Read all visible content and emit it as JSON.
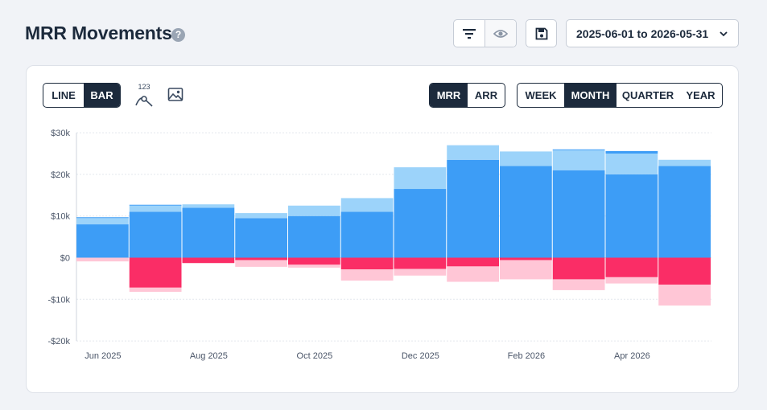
{
  "header": {
    "title": "MRR Movements",
    "help_icon": "question-circle-icon",
    "filter_icon": "filter-lines-icon",
    "eye_icon": "eye-icon",
    "save_icon": "floppy-disk-icon",
    "date_range": "2025-06-01 to 2026-05-31"
  },
  "toolbar": {
    "chart_modes": [
      "LINE",
      "BAR"
    ],
    "active_chart_mode": "BAR",
    "number_toggle_label": "123",
    "image_icon": "image-icon",
    "metrics": [
      "MRR",
      "ARR"
    ],
    "active_metric": "MRR",
    "periods": [
      "WEEK",
      "MONTH",
      "QUARTER",
      "YEAR"
    ],
    "active_period": "MONTH"
  },
  "colors": {
    "new_dark": "#3d9df6",
    "expansion_light": "#9cd3fa",
    "churn_red": "#fa2d66",
    "contraction_pink": "#ffc6d6",
    "grid": "#e3e7ed",
    "axis_text": "#4a5568"
  },
  "chart_data": {
    "type": "bar",
    "stacked": true,
    "categories": [
      "Jun 2025",
      "Jul 2025",
      "Aug 2025",
      "Sep 2025",
      "Oct 2025",
      "Nov 2025",
      "Dec 2025",
      "Jan 2026",
      "Feb 2026",
      "Mar 2026",
      "Apr 2026",
      "May 2026"
    ],
    "x_tick_labels": [
      "Jun 2025",
      "Aug 2025",
      "Oct 2025",
      "Dec 2025",
      "Feb 2026",
      "Apr 2026"
    ],
    "ylim": [
      -20000,
      30000
    ],
    "y_ticks": [
      30000,
      20000,
      10000,
      0,
      -10000,
      -20000
    ],
    "y_tick_labels": [
      "$30k",
      "$20k",
      "$10k",
      "$0",
      "-$10k",
      "-$20k"
    ],
    "grid": true,
    "series": [
      {
        "values": [
          8000,
          11000,
          12000,
          9500,
          10000,
          11000,
          16500,
          23500,
          22000,
          21000,
          20000,
          22000
        ]
      },
      {
        "values": [
          1500,
          1500,
          800,
          1200,
          2500,
          3300,
          5200,
          3500,
          3500,
          4800,
          5000,
          1500
        ]
      },
      {
        "values": [
          200,
          200,
          0,
          0,
          0,
          0,
          0,
          0,
          0,
          200,
          600,
          0
        ]
      },
      {
        "values": [
          0,
          -7200,
          -1300,
          -600,
          -1700,
          -2800,
          -2700,
          -2100,
          -600,
          -5200,
          -4700,
          -6500
        ]
      },
      {
        "values": [
          -900,
          -1000,
          0,
          -1600,
          -700,
          -2700,
          -1600,
          -3700,
          -4600,
          -2600,
          -1500,
          -5000
        ]
      }
    ]
  }
}
